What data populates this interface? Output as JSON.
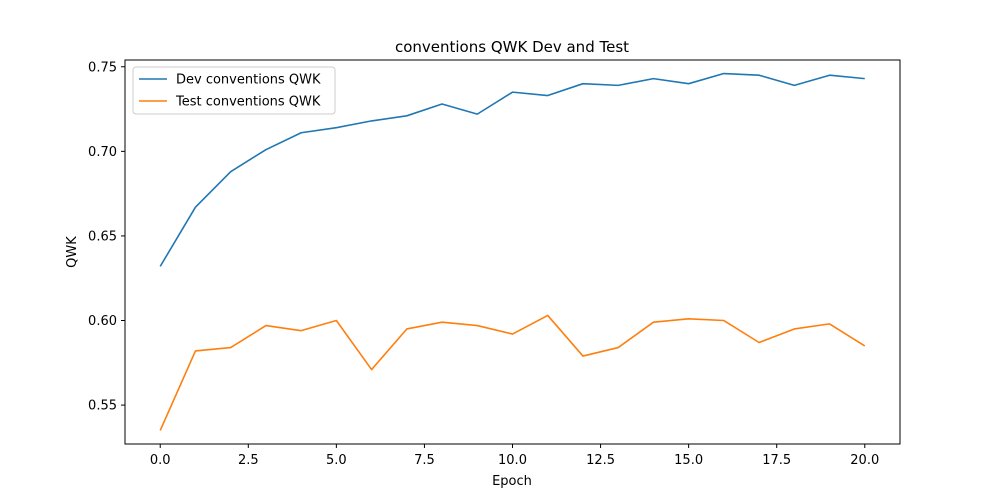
{
  "chart_data": {
    "type": "line",
    "title": "conventions QWK Dev and Test",
    "xlabel": "Epoch",
    "ylabel": "QWK",
    "xlim": [
      -1.0,
      21.0
    ],
    "ylim": [
      0.527,
      0.754
    ],
    "xticks": [
      0.0,
      2.5,
      5.0,
      7.5,
      10.0,
      12.5,
      15.0,
      17.5,
      20.0
    ],
    "xtick_labels": [
      "0.0",
      "2.5",
      "5.0",
      "7.5",
      "10.0",
      "12.5",
      "15.0",
      "17.5",
      "20.0"
    ],
    "yticks": [
      0.55,
      0.6,
      0.65,
      0.7,
      0.75
    ],
    "ytick_labels": [
      "0.55",
      "0.60",
      "0.65",
      "0.70",
      "0.75"
    ],
    "grid": false,
    "legend_position": "top-left",
    "x": [
      0,
      1,
      2,
      3,
      4,
      5,
      6,
      7,
      8,
      9,
      10,
      11,
      12,
      13,
      14,
      15,
      16,
      17,
      18,
      19,
      20
    ],
    "series": [
      {
        "name": "Dev conventions QWK",
        "color": "#1f77b4",
        "values": [
          0.632,
          0.667,
          0.688,
          0.701,
          0.711,
          0.714,
          0.718,
          0.721,
          0.728,
          0.722,
          0.735,
          0.733,
          0.74,
          0.739,
          0.743,
          0.74,
          0.746,
          0.745,
          0.739,
          0.745,
          0.743
        ]
      },
      {
        "name": "Test conventions QWK",
        "color": "#ff7f0e",
        "values": [
          0.535,
          0.582,
          0.584,
          0.597,
          0.594,
          0.6,
          0.571,
          0.595,
          0.599,
          0.597,
          0.592,
          0.603,
          0.579,
          0.584,
          0.599,
          0.601,
          0.6,
          0.587,
          0.595,
          0.598,
          0.585
        ]
      }
    ]
  }
}
